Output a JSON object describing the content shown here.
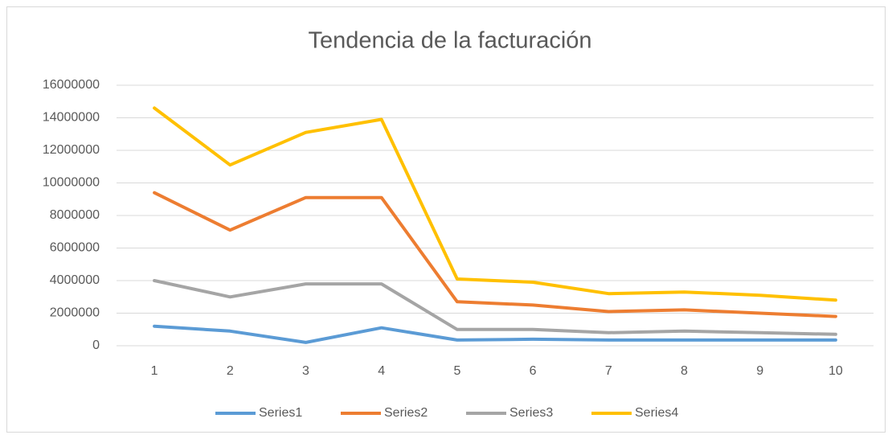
{
  "chart_data": {
    "type": "line",
    "title": "Tendencia de  la facturación",
    "categories": [
      "1",
      "2",
      "3",
      "4",
      "5",
      "6",
      "7",
      "8",
      "9",
      "10"
    ],
    "series": [
      {
        "name": "Series1",
        "color": "#5b9bd5",
        "values": [
          1200000,
          900000,
          200000,
          1100000,
          350000,
          400000,
          350000,
          350000,
          350000,
          350000
        ]
      },
      {
        "name": "Series2",
        "color": "#ed7d31",
        "values": [
          9400000,
          7100000,
          9100000,
          9100000,
          2700000,
          2500000,
          2100000,
          2200000,
          2000000,
          1800000
        ]
      },
      {
        "name": "Series3",
        "color": "#a5a5a5",
        "values": [
          4000000,
          3000000,
          3800000,
          3800000,
          1000000,
          1000000,
          800000,
          900000,
          800000,
          700000
        ]
      },
      {
        "name": "Series4",
        "color": "#ffc000",
        "values": [
          14600000,
          11100000,
          13100000,
          13900000,
          4100000,
          3900000,
          3200000,
          3300000,
          3100000,
          2800000
        ]
      }
    ],
    "ylim": [
      0,
      16000000
    ],
    "yticks": [
      0,
      2000000,
      4000000,
      6000000,
      8000000,
      10000000,
      12000000,
      14000000,
      16000000
    ],
    "grid": true,
    "legend": "bottom"
  }
}
